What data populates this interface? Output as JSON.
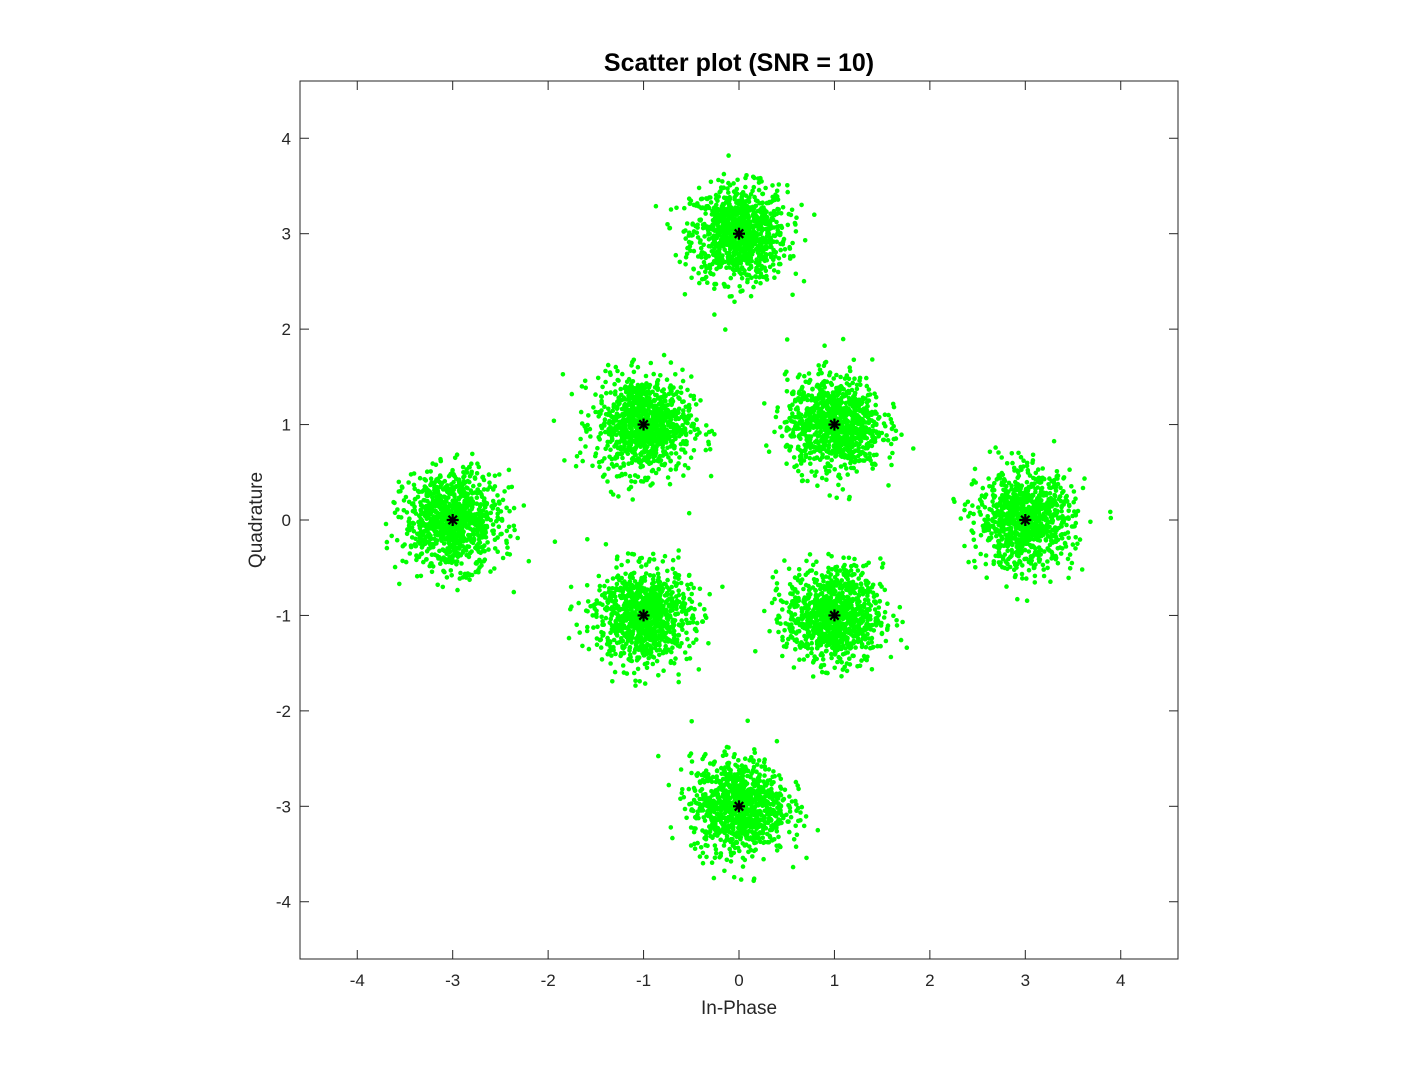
{
  "chart_data": {
    "type": "scatter",
    "title": "Scatter plot (SNR = 10)",
    "xlabel": "In-Phase",
    "ylabel": "Quadrature",
    "xlim": [
      -4.6,
      4.6
    ],
    "ylim": [
      -4.6,
      4.6
    ],
    "xticks": [
      -4,
      -3,
      -2,
      -1,
      0,
      1,
      2,
      3,
      4
    ],
    "yticks": [
      -4,
      -3,
      -2,
      -1,
      0,
      1,
      2,
      3,
      4
    ],
    "xtick_labels": [
      "-4",
      "-3",
      "-2",
      "-1",
      "0",
      "1",
      "2",
      "3",
      "4"
    ],
    "ytick_labels": [
      "-4",
      "-3",
      "-2",
      "-1",
      "0",
      "1",
      "2",
      "3",
      "4"
    ],
    "grid": false,
    "series": [
      {
        "marker": "dot",
        "color": "#00ff00",
        "description_points": "received symbols: noisy clusters around each constellation point, approx. std 0.25, about 1000 points per cluster"
      },
      {
        "marker": "asterisk",
        "color": "#000000",
        "points": [
          [
            0,
            3
          ],
          [
            -1,
            1
          ],
          [
            1,
            1
          ],
          [
            -3,
            0
          ],
          [
            3,
            0
          ],
          [
            -1,
            -1
          ],
          [
            1,
            -1
          ],
          [
            0,
            -3
          ]
        ]
      }
    ]
  }
}
